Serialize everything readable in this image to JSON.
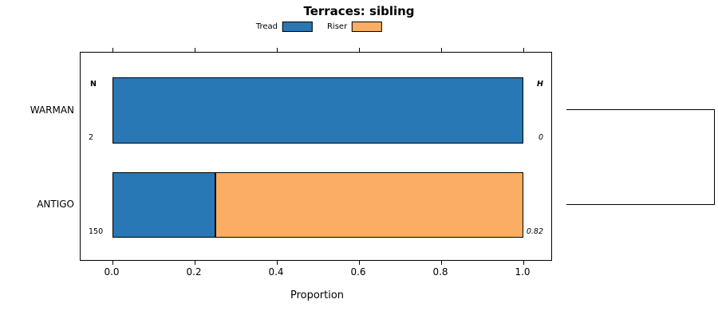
{
  "chart_data": {
    "type": "bar",
    "orientation": "horizontal",
    "stacked": true,
    "title": "Terraces: sibling",
    "xlabel": "Proportion",
    "xlim": [
      0,
      1
    ],
    "xticks": [
      "0.0",
      "0.2",
      "0.4",
      "0.6",
      "0.8",
      "1.0"
    ],
    "grid": false,
    "legend_position": "top",
    "categories": [
      "WARMAN",
      "ANTIGO"
    ],
    "series": [
      {
        "name": "Tread",
        "color": "#2878b5",
        "values": [
          1.0,
          0.25
        ]
      },
      {
        "name": "Riser",
        "color": "#fbae63",
        "values": [
          0.0,
          0.75
        ]
      }
    ],
    "annotations": {
      "left_header": "N",
      "right_header": "H",
      "left_values": [
        "2",
        "150"
      ],
      "right_values": [
        "0",
        "0.82"
      ]
    },
    "dendrogram": "two-leaf bracket on right edge linking WARMAN and ANTIGO rows"
  }
}
